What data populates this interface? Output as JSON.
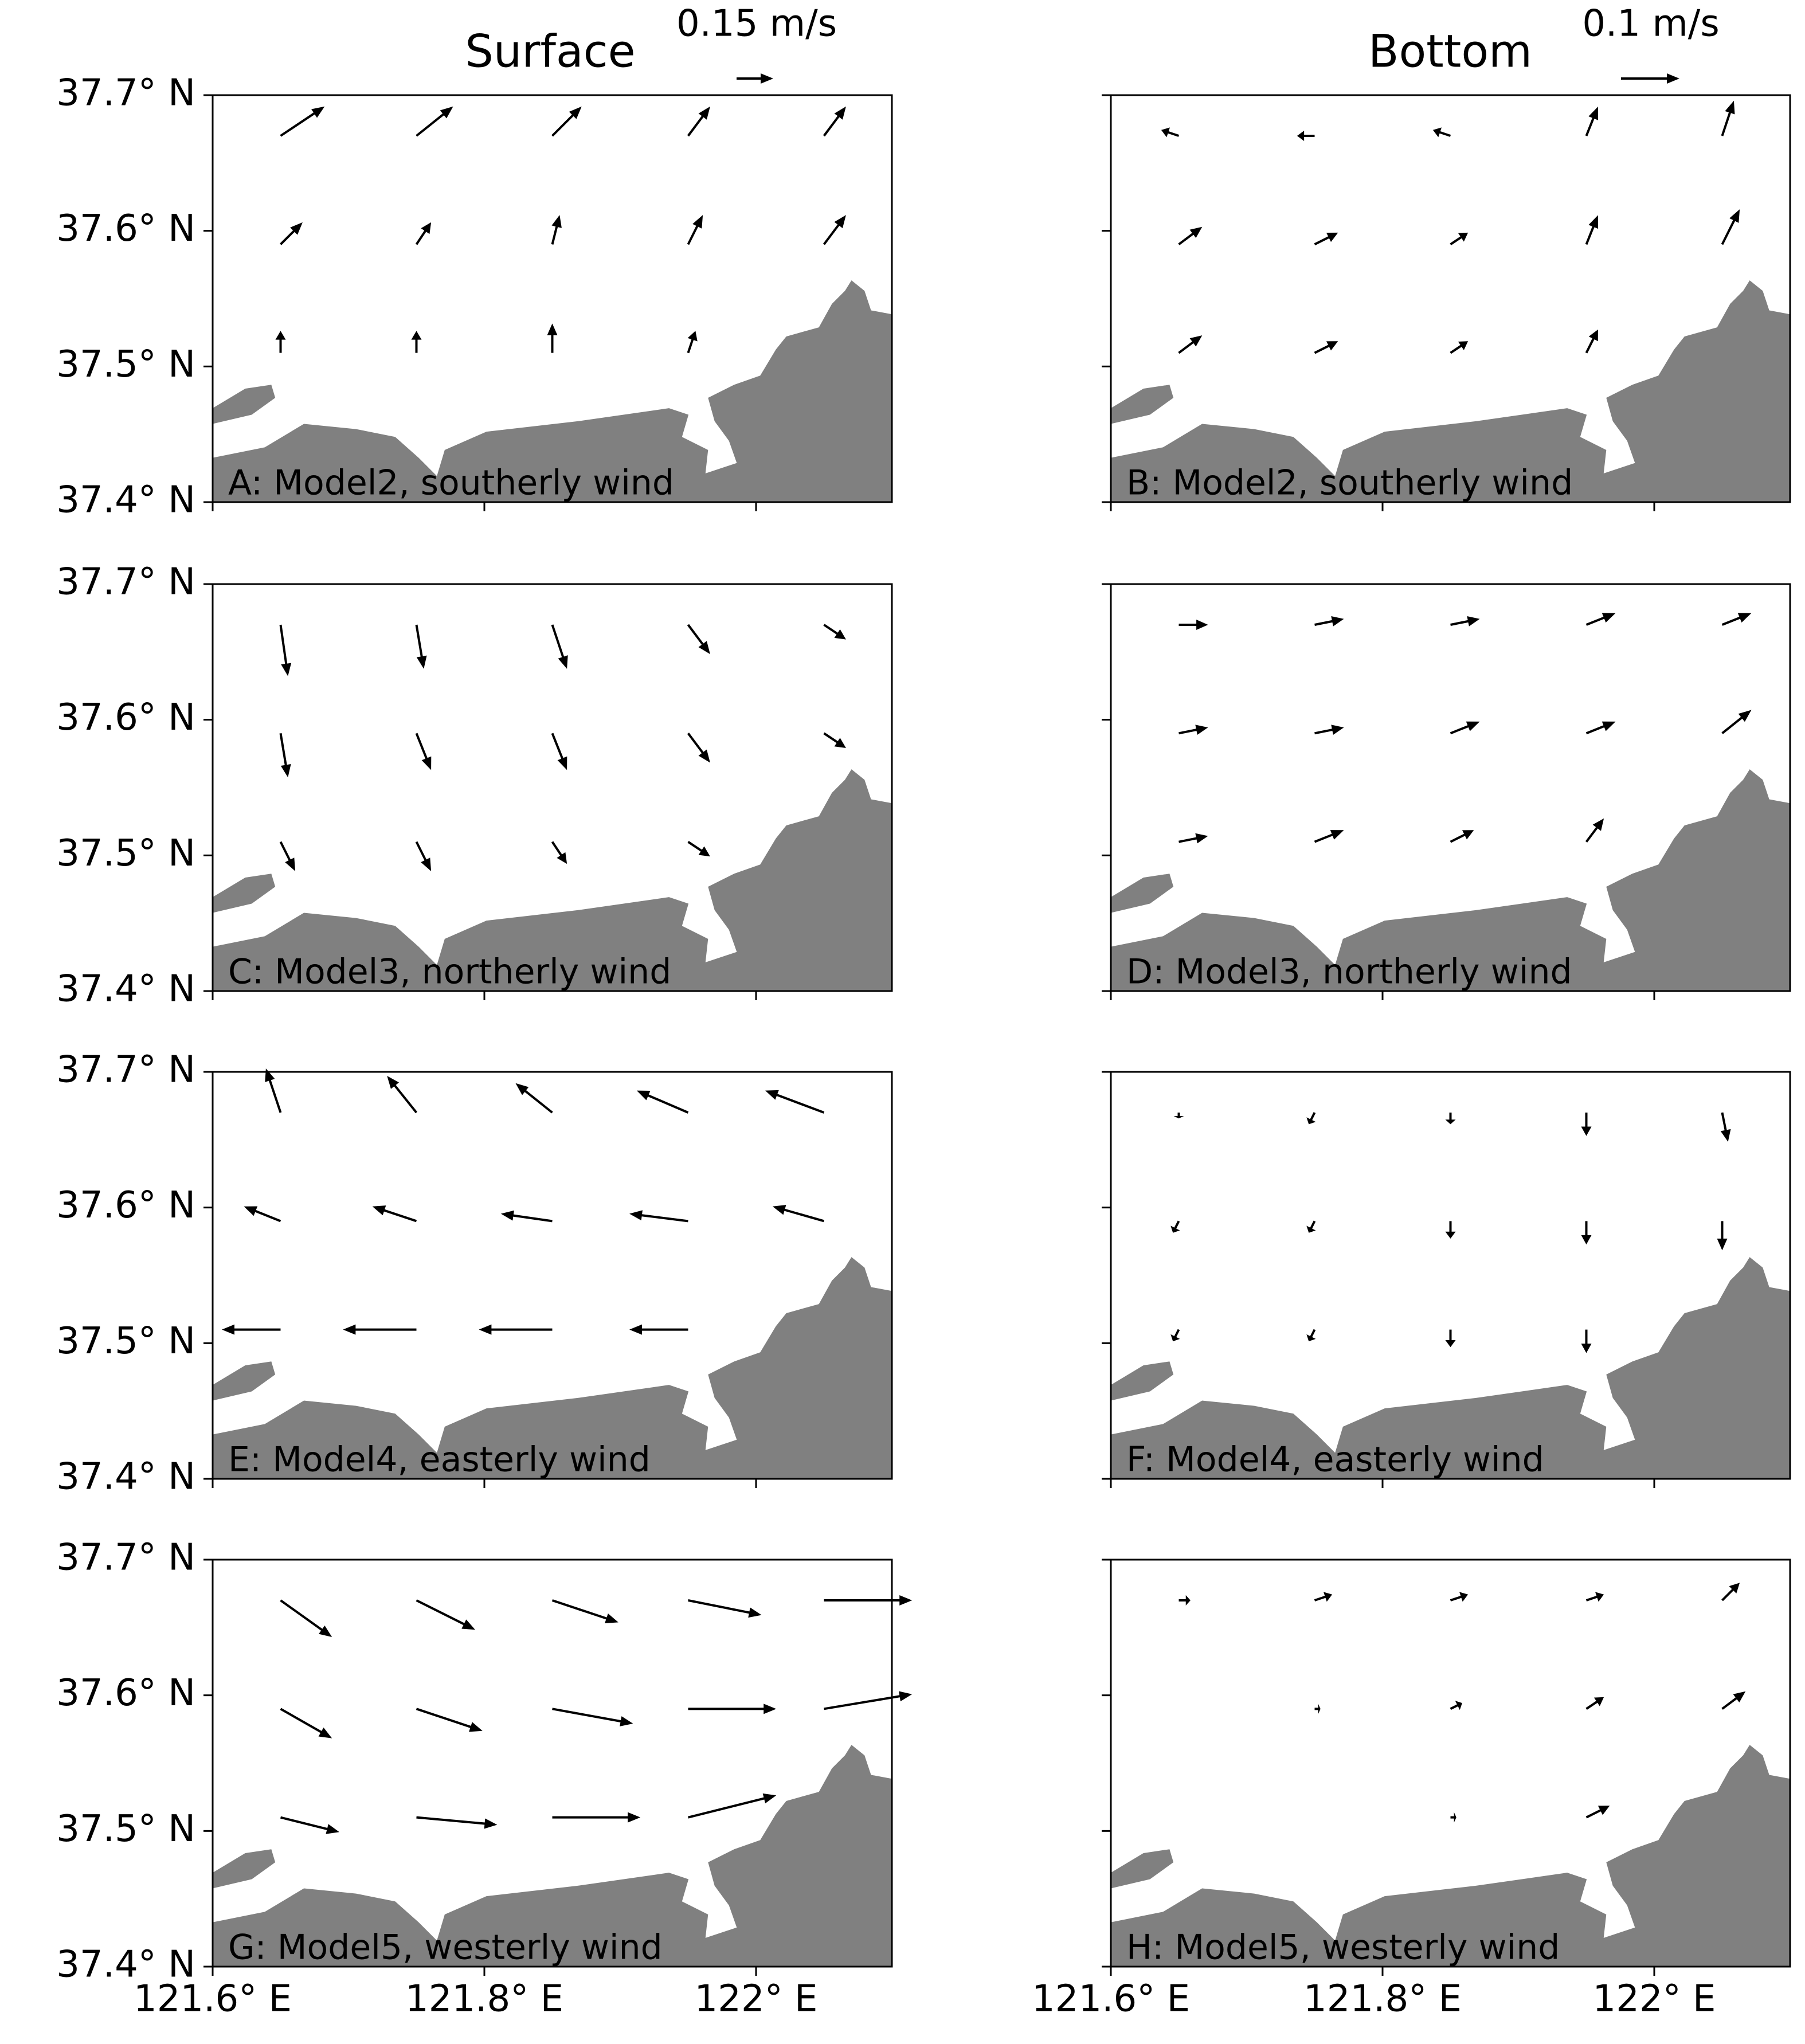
{
  "columns": [
    {
      "title": "Surface",
      "key": {
        "value": 0.15,
        "label": "0.15 m/s"
      }
    },
    {
      "title": "Bottom",
      "key": {
        "value": 0.1,
        "label": "0.1 m/s"
      }
    }
  ],
  "chart_data": [
    {
      "type": "quiver",
      "title": "A: Model2, southerly wind",
      "color": "#000000",
      "xlim": [
        121.6,
        122.1
      ],
      "ylim": [
        37.4,
        37.7
      ],
      "xticks": [
        121.6,
        121.8,
        122
      ],
      "yticks": [
        {
          "value": 37.4,
          "label": "37.4° N"
        },
        {
          "value": 37.5,
          "label": "37.5° N"
        },
        {
          "value": 37.6,
          "label": "37.6° N"
        },
        {
          "value": 37.7,
          "label": "37.7° N"
        }
      ],
      "x": [
        121.65,
        121.75,
        121.85,
        121.95,
        122.05,
        121.65,
        121.75,
        121.85,
        121.95,
        122.05,
        121.65,
        121.75,
        121.85,
        121.95
      ],
      "y": [
        37.67,
        37.67,
        37.67,
        37.67,
        37.67,
        37.59,
        37.59,
        37.59,
        37.59,
        37.59,
        37.51,
        37.51,
        37.51,
        37.51
      ],
      "u": [
        0.18,
        0.15,
        0.12,
        0.09,
        0.09,
        0.09,
        0.06,
        0.03,
        0.06,
        0.09,
        0,
        0,
        0,
        0.03
      ],
      "v": [
        0.12,
        0.12,
        0.12,
        0.12,
        0.12,
        0.09,
        0.09,
        0.12,
        0.12,
        0.12,
        0.09,
        0.09,
        0.12,
        0.09
      ]
    },
    {
      "type": "quiver",
      "title": "B: Model2, southerly wind",
      "color": "#000000",
      "xlim": [
        121.6,
        122.1
      ],
      "ylim": [
        37.4,
        37.7
      ],
      "xticks": [
        121.6,
        121.8,
        122
      ],
      "yticks": [
        37.4,
        37.5,
        37.6,
        37.7
      ],
      "x": [
        121.65,
        121.75,
        121.85,
        121.95,
        122.05,
        121.65,
        121.75,
        121.85,
        121.95,
        122.05,
        121.65,
        121.75,
        121.85,
        121.95
      ],
      "y": [
        37.67,
        37.67,
        37.67,
        37.67,
        37.67,
        37.59,
        37.59,
        37.59,
        37.59,
        37.59,
        37.51,
        37.51,
        37.51,
        37.51
      ],
      "u": [
        -0.03,
        -0.03,
        -0.03,
        0.02,
        0.02,
        0.04,
        0.04,
        0.03,
        0.02,
        0.03,
        0.04,
        0.04,
        0.03,
        0.02
      ],
      "v": [
        0.01,
        0,
        0.01,
        0.05,
        0.06,
        0.03,
        0.02,
        0.02,
        0.05,
        0.06,
        0.03,
        0.02,
        0.02,
        0.04
      ]
    },
    {
      "type": "quiver",
      "title": "C: Model3, northerly wind",
      "color": "#000000",
      "xlim": [
        121.6,
        122.1
      ],
      "ylim": [
        37.4,
        37.7
      ],
      "xticks": [
        121.6,
        121.8,
        122
      ],
      "yticks": [
        {
          "value": 37.4,
          "label": "37.4° N"
        },
        {
          "value": 37.5,
          "label": "37.5° N"
        },
        {
          "value": 37.6,
          "label": "37.6° N"
        },
        {
          "value": 37.7,
          "label": "37.7° N"
        }
      ],
      "x": [
        121.65,
        121.75,
        121.85,
        121.95,
        122.05,
        121.65,
        121.75,
        121.85,
        121.95,
        122.05,
        121.65,
        121.75,
        121.85,
        121.95
      ],
      "y": [
        37.67,
        37.67,
        37.67,
        37.67,
        37.67,
        37.59,
        37.59,
        37.59,
        37.59,
        37.59,
        37.51,
        37.51,
        37.51,
        37.51
      ],
      "u": [
        0.03,
        0.03,
        0.06,
        0.09,
        0.09,
        0.03,
        0.06,
        0.06,
        0.09,
        0.09,
        0.06,
        0.06,
        0.06,
        0.09
      ],
      "v": [
        -0.21,
        -0.18,
        -0.18,
        -0.12,
        -0.06,
        -0.18,
        -0.15,
        -0.15,
        -0.12,
        -0.06,
        -0.12,
        -0.12,
        -0.09,
        -0.06
      ]
    },
    {
      "type": "quiver",
      "title": "D: Model3, northerly wind",
      "color": "#000000",
      "xlim": [
        121.6,
        122.1
      ],
      "ylim": [
        37.4,
        37.7
      ],
      "xticks": [
        121.6,
        121.8,
        122
      ],
      "yticks": [
        37.4,
        37.5,
        37.6,
        37.7
      ],
      "x": [
        121.65,
        121.75,
        121.85,
        121.95,
        122.05,
        121.65,
        121.75,
        121.85,
        121.95,
        122.05,
        121.65,
        121.75,
        121.85,
        121.95
      ],
      "y": [
        37.67,
        37.67,
        37.67,
        37.67,
        37.67,
        37.59,
        37.59,
        37.59,
        37.59,
        37.59,
        37.51,
        37.51,
        37.51,
        37.51
      ],
      "u": [
        0.05,
        0.05,
        0.05,
        0.05,
        0.05,
        0.05,
        0.05,
        0.05,
        0.05,
        0.05,
        0.05,
        0.05,
        0.04,
        0.03
      ],
      "v": [
        0,
        0.01,
        0.01,
        0.02,
        0.02,
        0.01,
        0.01,
        0.02,
        0.02,
        0.04,
        0.01,
        0.02,
        0.02,
        0.04
      ]
    },
    {
      "type": "quiver",
      "title": "E: Model4, easterly wind",
      "color": "#000000",
      "xlim": [
        121.6,
        122.1
      ],
      "ylim": [
        37.4,
        37.7
      ],
      "xticks": [
        121.6,
        121.8,
        122
      ],
      "yticks": [
        {
          "value": 37.4,
          "label": "37.4° N"
        },
        {
          "value": 37.5,
          "label": "37.5° N"
        },
        {
          "value": 37.6,
          "label": "37.6° N"
        },
        {
          "value": 37.7,
          "label": "37.7° N"
        }
      ],
      "x": [
        121.65,
        121.75,
        121.85,
        121.95,
        122.05,
        121.65,
        121.75,
        121.85,
        121.95,
        122.05,
        121.65,
        121.75,
        121.85,
        121.95
      ],
      "y": [
        37.67,
        37.67,
        37.67,
        37.67,
        37.67,
        37.59,
        37.59,
        37.59,
        37.59,
        37.59,
        37.51,
        37.51,
        37.51,
        37.51
      ],
      "u": [
        -0.06,
        -0.12,
        -0.15,
        -0.21,
        -0.24,
        -0.15,
        -0.18,
        -0.21,
        -0.24,
        -0.21,
        -0.24,
        -0.3,
        -0.3,
        -0.24
      ],
      "v": [
        0.18,
        0.15,
        0.12,
        0.09,
        0.09,
        0.06,
        0.06,
        0.03,
        0.03,
        0.06,
        0,
        0,
        0,
        0
      ]
    },
    {
      "type": "quiver",
      "title": "F: Model4, easterly wind",
      "color": "#000000",
      "xlim": [
        121.6,
        122.1
      ],
      "ylim": [
        37.4,
        37.7
      ],
      "xticks": [
        121.6,
        121.8,
        122
      ],
      "yticks": [
        37.4,
        37.5,
        37.6,
        37.7
      ],
      "x": [
        121.65,
        121.75,
        121.85,
        121.95,
        122.05,
        121.65,
        121.75,
        121.85,
        121.95,
        122.05,
        121.65,
        121.75,
        121.85,
        121.95
      ],
      "y": [
        37.67,
        37.67,
        37.67,
        37.67,
        37.67,
        37.59,
        37.59,
        37.59,
        37.59,
        37.59,
        37.51,
        37.51,
        37.51,
        37.51
      ],
      "u": [
        0,
        -0.01,
        0,
        0,
        0.01,
        -0.01,
        -0.01,
        0,
        0,
        0,
        -0.01,
        -0.01,
        0,
        0
      ],
      "v": [
        -0.01,
        -0.02,
        -0.02,
        -0.04,
        -0.05,
        -0.02,
        -0.02,
        -0.03,
        -0.04,
        -0.05,
        -0.02,
        -0.02,
        -0.03,
        -0.04
      ]
    },
    {
      "type": "quiver",
      "title": "G: Model5, westerly wind",
      "color": "#000000",
      "xlim": [
        121.6,
        122.1
      ],
      "ylim": [
        37.4,
        37.7
      ],
      "xticks": [
        {
          "value": 121.6,
          "label": "121.6° E"
        },
        {
          "value": 121.8,
          "label": "121.8° E"
        },
        {
          "value": 122,
          "label": "122° E"
        }
      ],
      "yticks": [
        {
          "value": 37.4,
          "label": "37.4° N"
        },
        {
          "value": 37.5,
          "label": "37.5° N"
        },
        {
          "value": 37.6,
          "label": "37.6° N"
        },
        {
          "value": 37.7,
          "label": "37.7° N"
        }
      ],
      "x": [
        121.65,
        121.75,
        121.85,
        121.95,
        122.05,
        121.65,
        121.75,
        121.85,
        121.95,
        122.05,
        121.65,
        121.75,
        121.85,
        121.95
      ],
      "y": [
        37.67,
        37.67,
        37.67,
        37.67,
        37.67,
        37.59,
        37.59,
        37.59,
        37.59,
        37.59,
        37.51,
        37.51,
        37.51,
        37.51
      ],
      "u": [
        0.21,
        0.24,
        0.27,
        0.3,
        0.36,
        0.21,
        0.27,
        0.33,
        0.36,
        0.36,
        0.24,
        0.33,
        0.36,
        0.36
      ],
      "v": [
        -0.15,
        -0.12,
        -0.09,
        -0.06,
        0,
        -0.12,
        -0.09,
        -0.06,
        0,
        0.06,
        -0.06,
        -0.03,
        0,
        0.09
      ]
    },
    {
      "type": "quiver",
      "title": "H: Model5, westerly wind",
      "color": "#000000",
      "xlim": [
        121.6,
        122.1
      ],
      "ylim": [
        37.4,
        37.7
      ],
      "xticks": [
        {
          "value": 121.6,
          "label": "121.6° E"
        },
        {
          "value": 121.8,
          "label": "121.8° E"
        },
        {
          "value": 122,
          "label": "122° E"
        }
      ],
      "yticks": [
        37.4,
        37.5,
        37.6,
        37.7
      ],
      "x": [
        121.65,
        121.75,
        121.85,
        121.95,
        122.05,
        121.65,
        121.75,
        121.85,
        121.95,
        122.05,
        121.65,
        121.75,
        121.85,
        121.95
      ],
      "y": [
        37.67,
        37.67,
        37.67,
        37.67,
        37.67,
        37.59,
        37.59,
        37.59,
        37.59,
        37.59,
        37.51,
        37.51,
        37.51,
        37.51
      ],
      "u": [
        0.02,
        0.03,
        0.03,
        0.03,
        0.03,
        0,
        0.01,
        0.02,
        0.03,
        0.04,
        0,
        0,
        0.01,
        0.04
      ],
      "v": [
        0,
        0.01,
        0.01,
        0.01,
        0.03,
        0,
        0,
        0.01,
        0.02,
        0.03,
        0,
        0,
        0,
        0.02
      ]
    }
  ]
}
